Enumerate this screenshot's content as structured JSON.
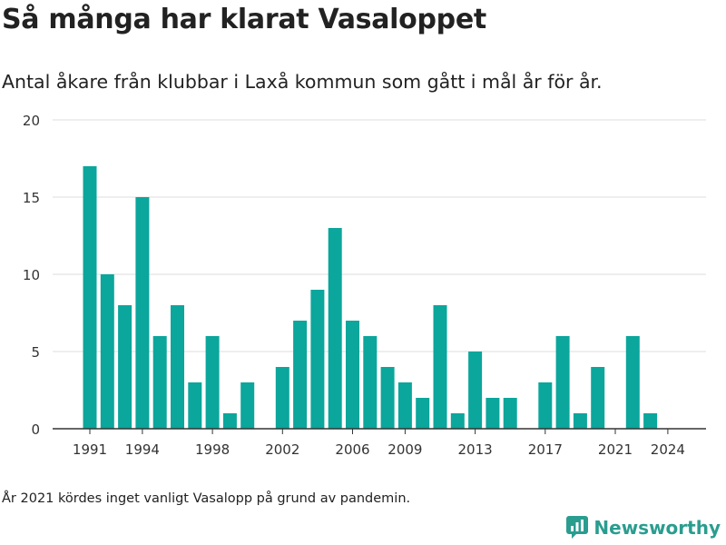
{
  "chart_data": {
    "type": "bar",
    "title": "Så många har klarat Vasaloppet",
    "subtitle": "Antal åkare från klubbar i Laxå kommun som gått i mål år för år.",
    "xlabel": "",
    "ylabel": "",
    "x": [
      1991,
      1992,
      1993,
      1994,
      1995,
      1996,
      1997,
      1998,
      1999,
      2000,
      2001,
      2002,
      2003,
      2004,
      2005,
      2006,
      2007,
      2008,
      2009,
      2010,
      2011,
      2012,
      2013,
      2014,
      2015,
      2016,
      2017,
      2018,
      2019,
      2020,
      2021,
      2022,
      2023,
      2024
    ],
    "values": [
      17,
      10,
      8,
      15,
      6,
      8,
      3,
      6,
      1,
      3,
      0,
      4,
      7,
      9,
      13,
      7,
      6,
      4,
      3,
      2,
      8,
      1,
      5,
      2,
      2,
      0,
      3,
      6,
      1,
      4,
      0,
      6,
      1,
      0
    ],
    "xticks": [
      "1991",
      "1994",
      "1998",
      "2002",
      "2006",
      "2009",
      "2013",
      "2017",
      "2021",
      "2024"
    ],
    "yticks": [
      "0",
      "5",
      "10",
      "15",
      "20"
    ],
    "ylim": [
      0,
      20
    ],
    "grid": true,
    "bar_color": "#0ba69c"
  },
  "footnote": "År 2021 kördes inget vanligt Vasalopp på grund av pandemin.",
  "brand": {
    "name": "Newsworthy",
    "icon": "newsworthy-logo-icon",
    "color": "#2a9d8f"
  }
}
